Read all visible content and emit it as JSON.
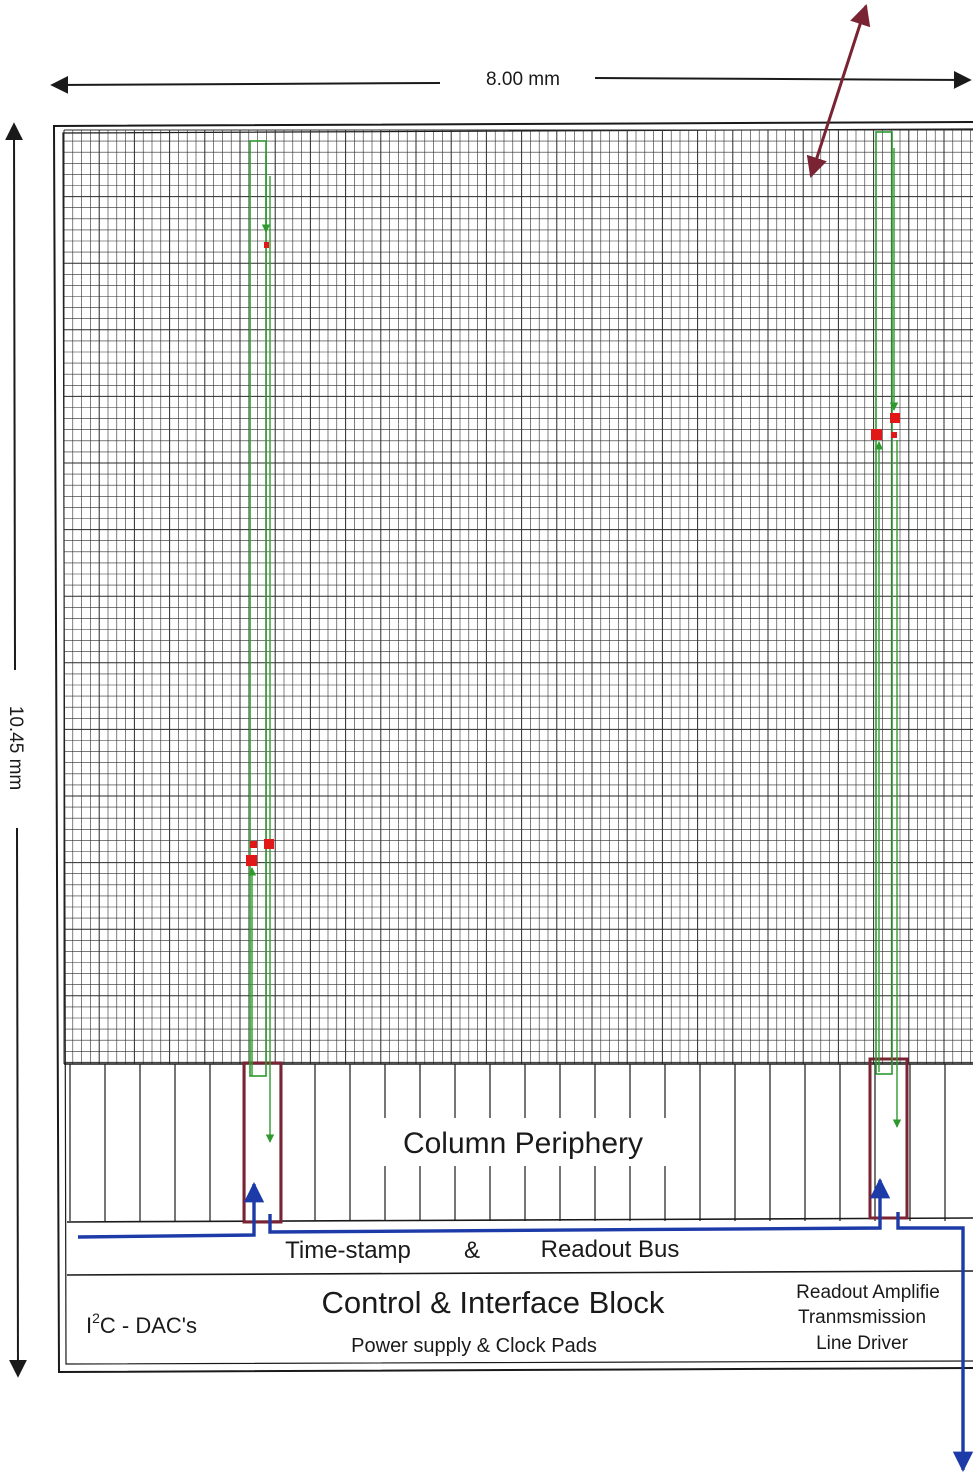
{
  "dimensions": {
    "width_label": "8.00  mm",
    "height_label": "10.45  mm"
  },
  "blocks": {
    "column_periphery": "Column Periphery",
    "bus": {
      "left": "Time-stamp",
      "amp": "&",
      "right": "Readout  Bus"
    },
    "control": {
      "title": "Control  &  Interface  Block",
      "sub": "Power supply  &  Clock  Pads",
      "dac_prefix": "I",
      "dac_sup": "2",
      "dac_rest": "C - DAC's",
      "readout_line1": "Readout  Amplifie",
      "readout_line2": "Tranmsmission",
      "readout_line3": "Line  Driver"
    }
  },
  "colors": {
    "grid": "#2a2a2a",
    "green": "#2e9a2e",
    "red": "#e01818",
    "maroon": "#7a2333",
    "blue": "#1c3aa8"
  }
}
